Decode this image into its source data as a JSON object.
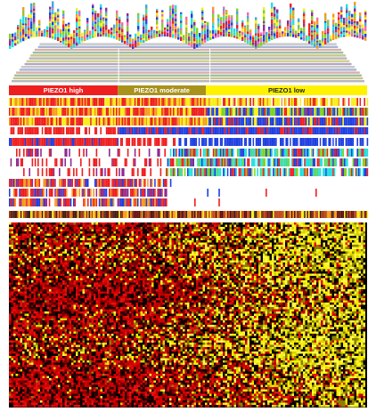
{
  "figure": {
    "groups": [
      {
        "key": "high",
        "label": "PIEZO1 high",
        "bar_color": "#ef1f1f",
        "text_color": "#ffffff",
        "share": 0.304
      },
      {
        "key": "moderate",
        "label": "PIEZO1 moderate",
        "bar_color": "#a8921c",
        "text_color": "#ffffff",
        "share": 0.246
      },
      {
        "key": "low",
        "label": "PIEZO1 low",
        "bar_color": "#fff200",
        "text_color": "#222222",
        "share": 0.45
      }
    ],
    "palette": {
      "red": "#ef1f1f",
      "yellow": "#f7ef1a",
      "blue": "#1f3fe0",
      "cyan": "#22e0e0",
      "orange": "#f59a1c",
      "green": "#7ed321",
      "purple": "#8e2b8f",
      "pink": "#f06ab0",
      "gray": "#c8c8c8",
      "dark": "#1a1a1a",
      "heat_low": "#d60000",
      "heat_high": "#f5f000"
    }
  }
}
